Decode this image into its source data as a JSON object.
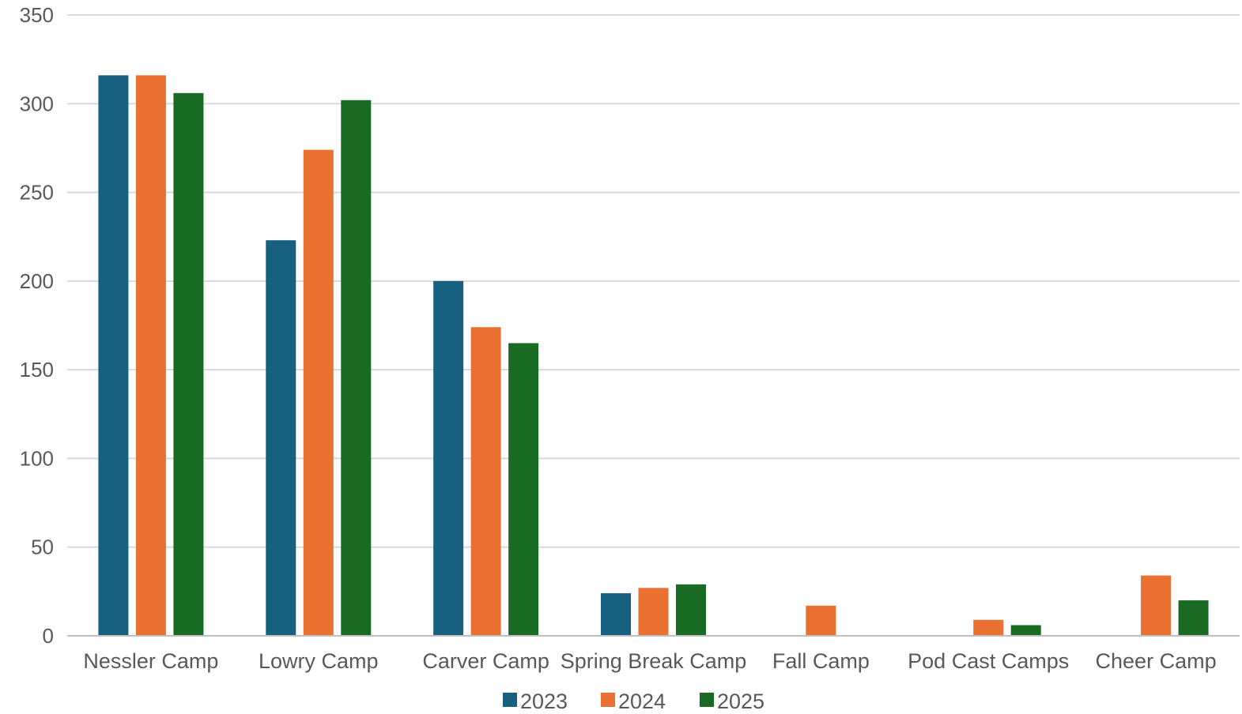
{
  "chart_data": {
    "type": "bar",
    "title": "",
    "xlabel": "",
    "ylabel": "",
    "categories": [
      "Nessler Camp",
      "Lowry Camp",
      "Carver Camp",
      "Spring Break Camp",
      "Fall Camp",
      "Pod Cast Camps",
      "Cheer Camp"
    ],
    "series": [
      {
        "name": "2023",
        "color": "#17607f",
        "values": [
          316,
          223,
          200,
          24,
          0,
          0,
          0
        ]
      },
      {
        "name": "2024",
        "color": "#e97132",
        "values": [
          316,
          274,
          174,
          27,
          17,
          9,
          34
        ]
      },
      {
        "name": "2025",
        "color": "#196b24",
        "values": [
          306,
          302,
          165,
          29,
          0,
          6,
          20
        ]
      }
    ],
    "ylim": [
      0,
      350
    ],
    "yticks": [
      0,
      50,
      100,
      150,
      200,
      250,
      300,
      350
    ],
    "grid": true,
    "legend_position": "bottom"
  }
}
